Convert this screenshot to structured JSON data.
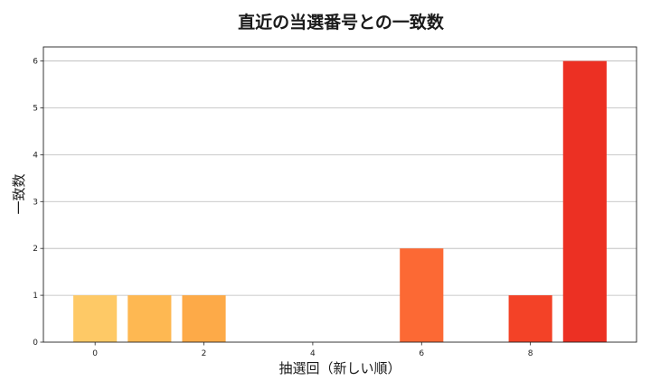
{
  "chart_data": {
    "type": "bar",
    "title": "直近の当選番号との一致数",
    "xlabel": "抽選回（新しい順）",
    "ylabel": "一致数",
    "x": [
      0,
      1,
      2,
      3,
      4,
      5,
      6,
      7,
      8,
      9
    ],
    "values": [
      1,
      1,
      1,
      0,
      0,
      0,
      2,
      0,
      1,
      6
    ],
    "colors": [
      "#fec966",
      "#feb852",
      "#fdaa48",
      "#fd9b42",
      "#fd8c3c",
      "#fc7a36",
      "#fc6934",
      "#f8542d",
      "#f34227",
      "#ec3023"
    ],
    "xticks": [
      0,
      2,
      4,
      6,
      8
    ],
    "yticks": [
      0,
      1,
      2,
      3,
      4,
      5,
      6
    ],
    "xlim": [
      -0.95,
      9.95
    ],
    "ylim": [
      0,
      6.3
    ],
    "grid": "y-major"
  }
}
